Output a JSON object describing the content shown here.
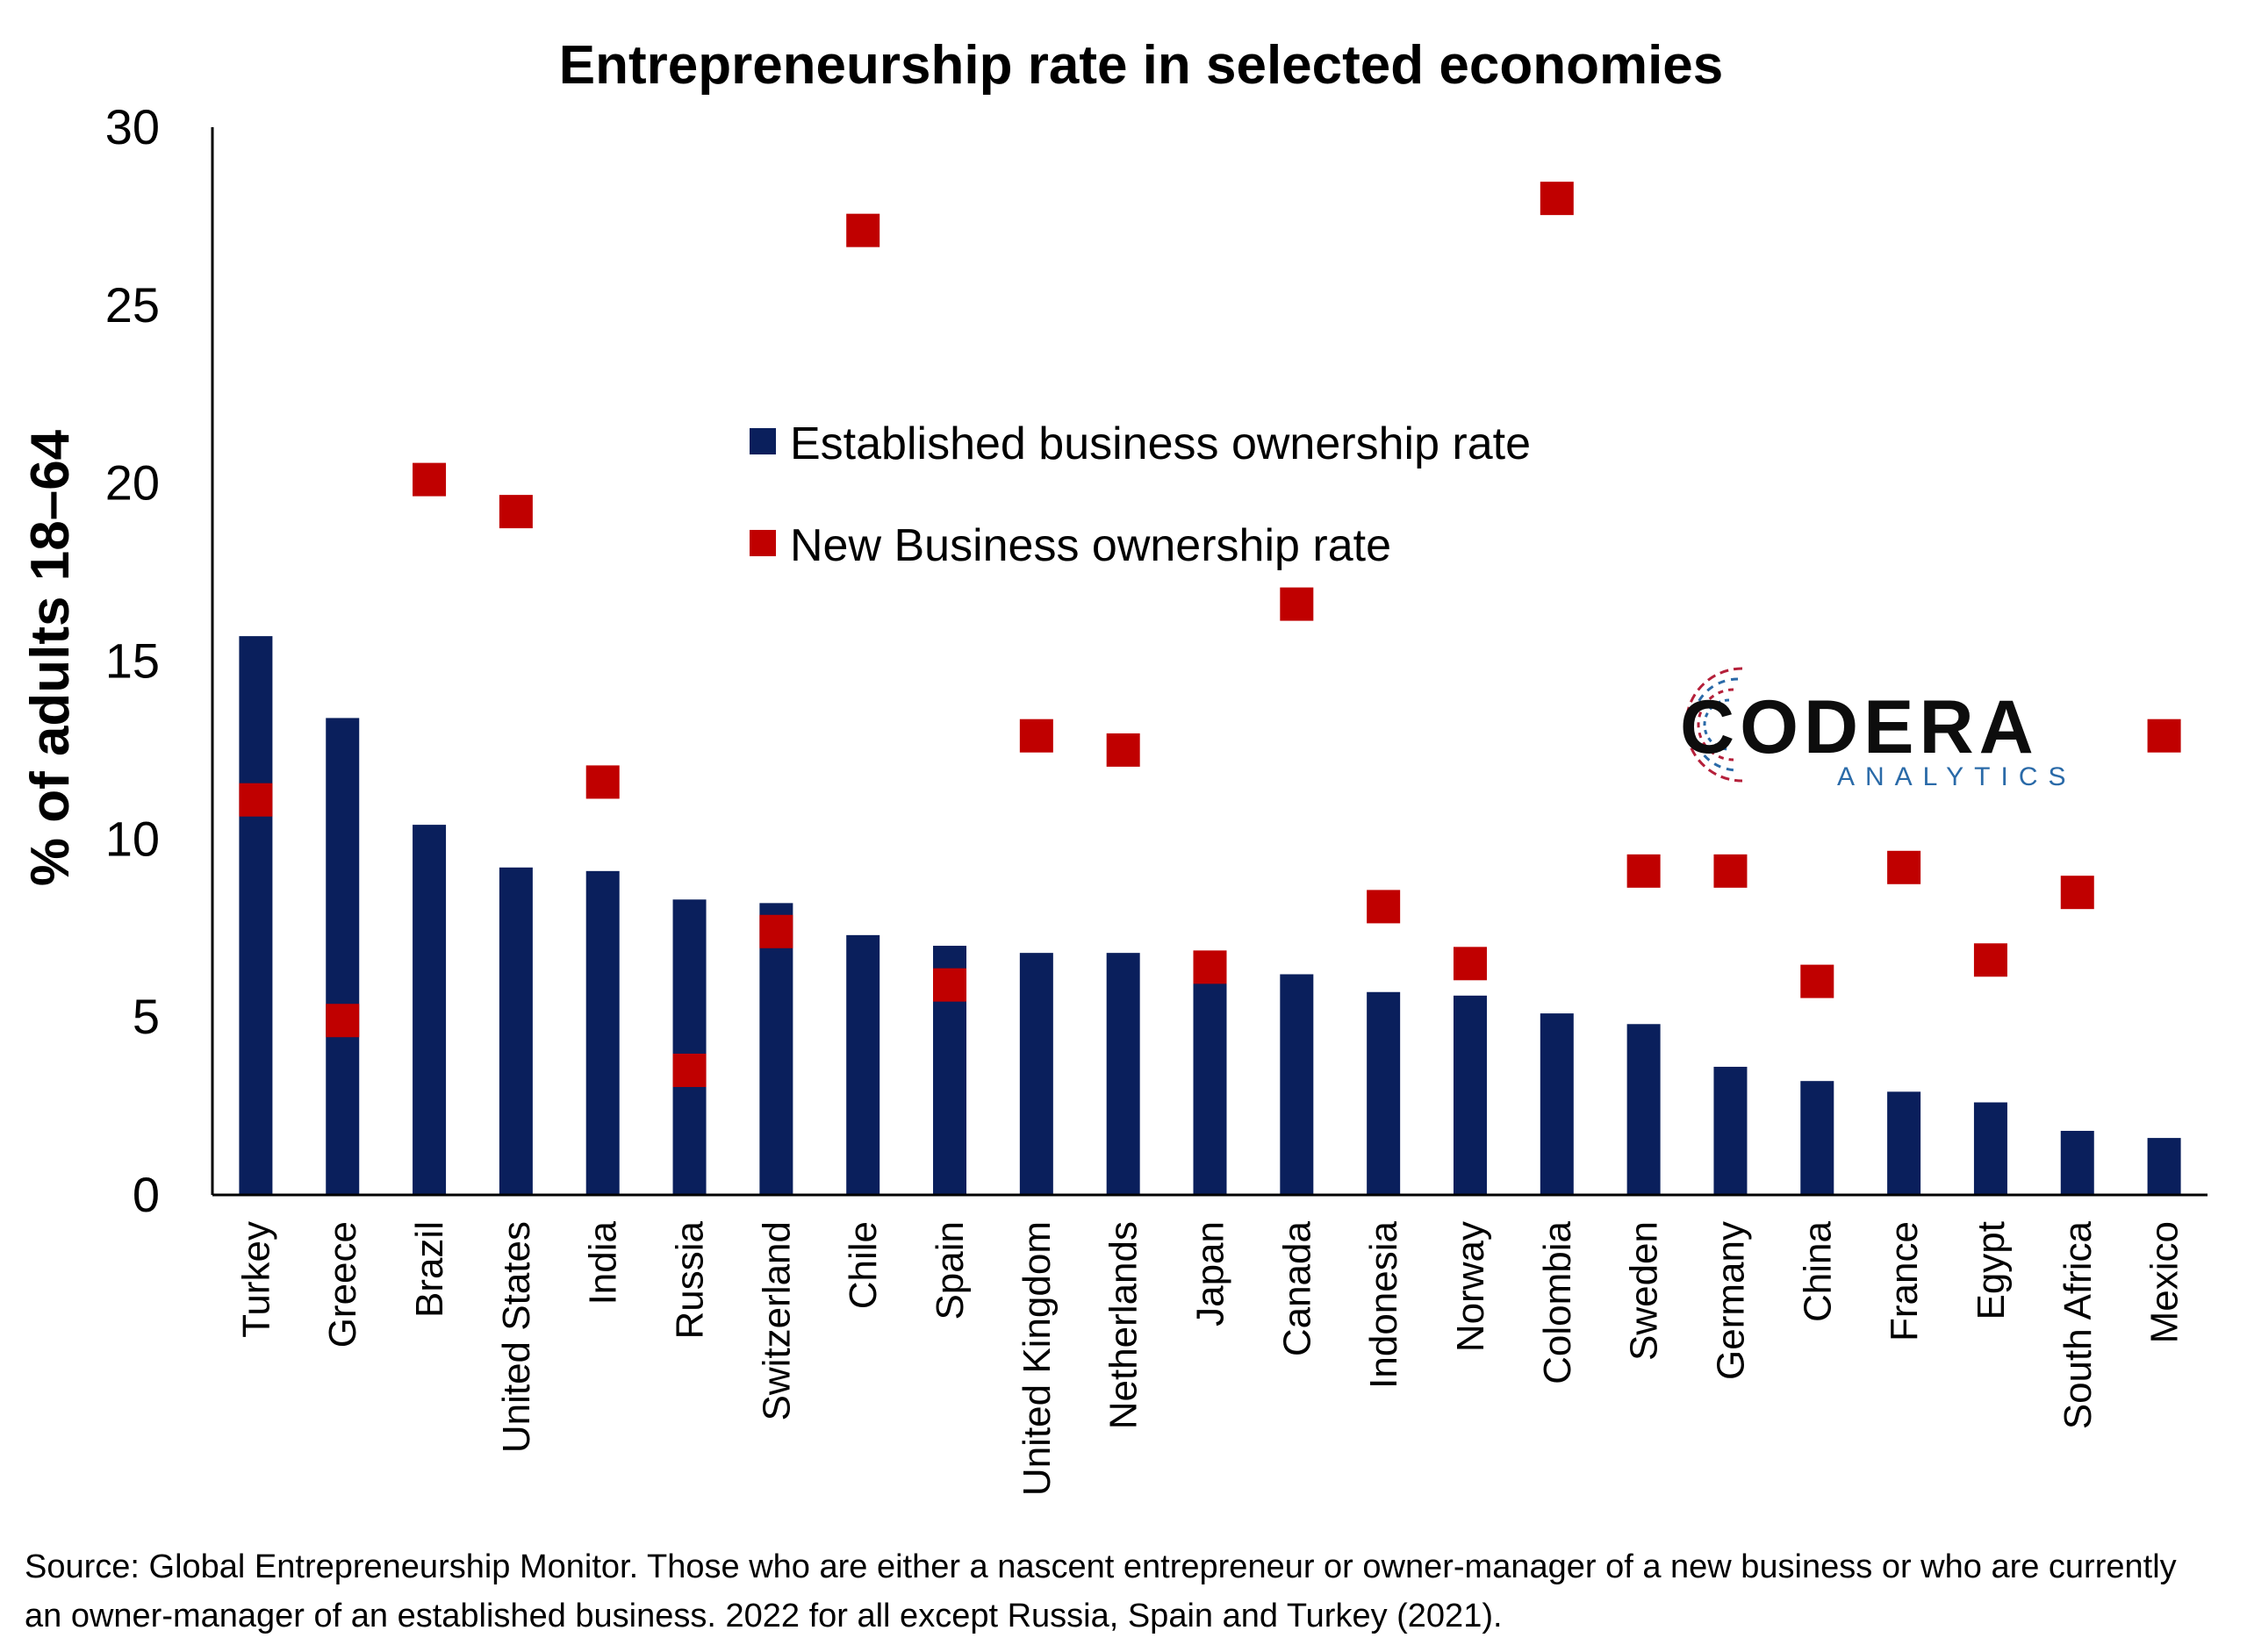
{
  "chart_data": {
    "type": "bar",
    "title": "Entrepreneurship rate in selected economies",
    "ylabel": "% of adults 18–64",
    "xlabel": "",
    "ylim": [
      0,
      30
    ],
    "yticks": [
      0,
      5,
      10,
      15,
      20,
      25,
      30
    ],
    "grid": false,
    "legend_position": "center-top",
    "categories": [
      "Turkey",
      "Greece",
      "Brazil",
      "United States",
      "India",
      "Russia",
      "Switzerland",
      "Chile",
      "Spain",
      "United Kingdom",
      "Netherlands",
      "Japan",
      "Canada",
      "Indonesia",
      "Norway",
      "Colombia",
      "Sweden",
      "Germany",
      "China",
      "France",
      "Egypt",
      "South Africa",
      "Mexico"
    ],
    "series": [
      {
        "name": "Established business ownership rate",
        "type": "bar",
        "color": "#0a1f5c",
        "values": [
          15.7,
          13.4,
          10.4,
          9.2,
          9.1,
          8.3,
          8.2,
          7.3,
          7.0,
          6.8,
          6.8,
          6.3,
          6.2,
          5.7,
          5.6,
          5.1,
          4.8,
          3.6,
          3.2,
          2.9,
          2.6,
          1.8,
          1.6
        ]
      },
      {
        "name": "New Business ownership rate",
        "type": "scatter",
        "color": "#c00000",
        "values": [
          11.1,
          4.9,
          20.1,
          19.2,
          11.6,
          3.5,
          7.4,
          27.1,
          5.9,
          12.9,
          12.5,
          6.4,
          16.6,
          8.1,
          6.5,
          28.0,
          9.1,
          9.1,
          6.0,
          9.2,
          6.6,
          8.5,
          12.9
        ]
      }
    ]
  },
  "logo": {
    "name": "CODERA",
    "sub": "ANALYTICS",
    "colors": {
      "main": "#0d0d0d",
      "sub": "#2a6aa8",
      "accent": "#b5203a"
    }
  },
  "source": "Source: Global Entrepreneurship Monitor. Those who are either a nascent entrepreneur or owner-manager of a new business or who are currently an owner-manager of an established business. 2022 for all except Russia, Spain and Turkey (2021)."
}
